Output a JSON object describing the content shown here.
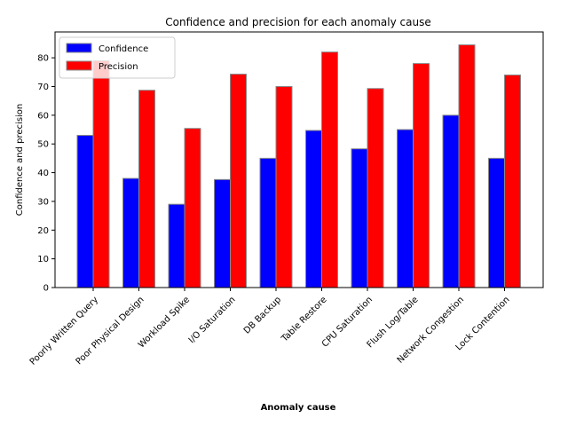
{
  "chart_data": {
    "type": "bar",
    "title": "Confidence and precision for each anomaly cause",
    "xlabel": "Anomaly cause",
    "ylabel": "Confidence and precision",
    "ylim": [
      0,
      89
    ],
    "yticks": [
      0,
      10,
      20,
      30,
      40,
      50,
      60,
      70,
      80
    ],
    "legend_position": "top-left",
    "categories": [
      "Poorly Written Query",
      "Poor Physical Design",
      "Workload Spike",
      "I/O Saturation",
      "DB Backup",
      "Table Restore",
      "CPU Saturation",
      "Flush Log/Table",
      "Network Congestion",
      "Lock Contention"
    ],
    "series": [
      {
        "name": "Confidence",
        "color": "#0000ff",
        "values": [
          53,
          38,
          29,
          37.6,
          45,
          54.7,
          48.3,
          55,
          60,
          45
        ]
      },
      {
        "name": "Precision",
        "color": "#ff0000",
        "values": [
          79,
          68.7,
          55.4,
          74.3,
          70,
          82,
          69.3,
          78,
          84.5,
          74
        ]
      }
    ],
    "edge_color": "#888888"
  }
}
